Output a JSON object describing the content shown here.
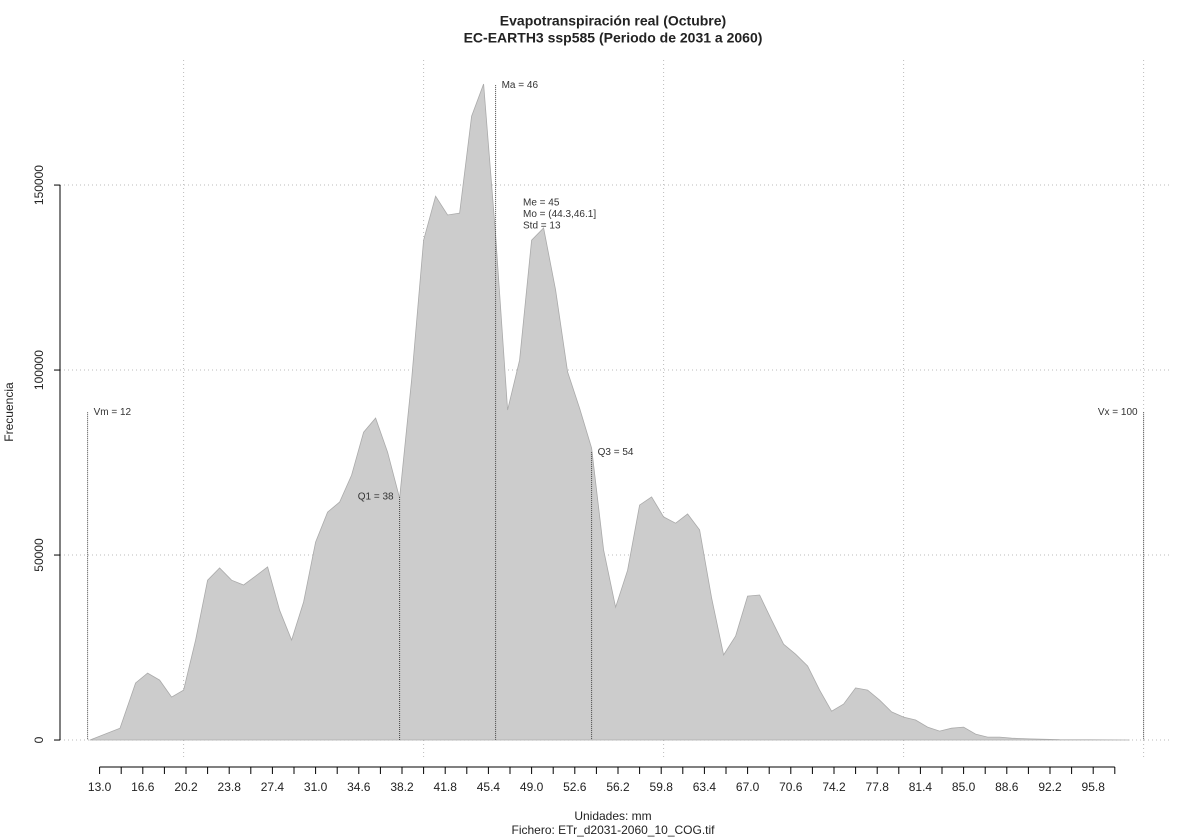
{
  "chart_data": {
    "type": "area",
    "title": "Evapotranspiración real (Octubre)",
    "subtitle": "EC-EARTH3 ssp585 (Periodo de 2031 a 2060)",
    "xlabel": "Unidades: mm",
    "caption": "Fichero: ETr_d2031-2060_10_COG.tif",
    "ylabel": "Frecuencia",
    "color": "#cccccc",
    "x": [
      12.2,
      14.7,
      16,
      17,
      18,
      19,
      20,
      21,
      22,
      23,
      24,
      25,
      26,
      27,
      28,
      29,
      30,
      31,
      32,
      33,
      34,
      35,
      36,
      37,
      38,
      39,
      40,
      41,
      42,
      43,
      44,
      45,
      46,
      47,
      48,
      49,
      50,
      51,
      52,
      53,
      54,
      55,
      56,
      57,
      58,
      59,
      60,
      61,
      62,
      63,
      64,
      65,
      66,
      67,
      68,
      69,
      70,
      71,
      72,
      73,
      74,
      75,
      76,
      77,
      78,
      79,
      80,
      81,
      82,
      83,
      84,
      85,
      86,
      87,
      88,
      89,
      90.5,
      93,
      95.5,
      98.8
    ],
    "y": [
      0,
      3200,
      15400,
      18100,
      16200,
      11600,
      13500,
      27000,
      43200,
      46500,
      43200,
      41900,
      44300,
      46800,
      35100,
      27000,
      37300,
      53500,
      61600,
      64300,
      71600,
      83200,
      87000,
      77800,
      65400,
      97300,
      135100,
      147000,
      141900,
      142400,
      168600,
      177300,
      136500,
      89200,
      102700,
      135100,
      138400,
      121600,
      99500,
      89700,
      78900,
      51400,
      35900,
      45900,
      63500,
      65700,
      60300,
      58600,
      61100,
      56800,
      38400,
      23000,
      28100,
      38900,
      39200,
      32400,
      25900,
      23200,
      20000,
      13500,
      7800,
      9700,
      14100,
      13500,
      10800,
      7600,
      6200,
      5400,
      3500,
      2400,
      3200,
      3500,
      1600,
      800,
      800,
      500,
      300,
      100,
      50,
      0
    ],
    "xlim": [
      9.7,
      102.2
    ],
    "ylim": [
      -5400,
      183800
    ],
    "xticks": [
      {
        "value": 13.0,
        "label": "13.0"
      },
      16.6,
      20.2,
      23.8,
      27.4,
      {
        "value": 31.0,
        "label": "31.0"
      },
      34.6,
      38.2,
      41.8,
      45.4,
      {
        "value": 49.0,
        "label": "49.0"
      },
      52.6,
      56.2,
      59.8,
      63.4,
      {
        "value": 67.0,
        "label": "67.0"
      },
      70.6,
      74.2,
      77.8,
      81.4,
      {
        "value": 85.0,
        "label": "85.0"
      },
      88.6,
      92.2,
      95.8
    ],
    "xminorticks": [
      14.8,
      18.4,
      22,
      25.6,
      29.2,
      32.8,
      36.4,
      40,
      43.6,
      47.2,
      50.8,
      54.4,
      58,
      61.6,
      65.2,
      68.8,
      72.4,
      76,
      79.6,
      83.2,
      86.8,
      90.4,
      94,
      97.6
    ],
    "xgrid": [
      20,
      40,
      60,
      80,
      100
    ],
    "yticks": [
      0,
      50000,
      100000,
      150000
    ],
    "grid": true,
    "markers": [
      {
        "label": "Vm = 12",
        "x": 12,
        "y": 88600
      },
      {
        "label": "Q1 = 38",
        "x": 38,
        "y": 65700
      },
      {
        "label": "Ma = 46",
        "x": 46,
        "y": 177000
      },
      {
        "label": "Q3 = 54",
        "x": 54,
        "y": 77800
      },
      {
        "label": "Vx = 100",
        "x": 100,
        "y": 88600
      }
    ],
    "stats": [
      "Me = 45",
      "Mo = (44.3,46.1]",
      "Std = 13"
    ]
  }
}
